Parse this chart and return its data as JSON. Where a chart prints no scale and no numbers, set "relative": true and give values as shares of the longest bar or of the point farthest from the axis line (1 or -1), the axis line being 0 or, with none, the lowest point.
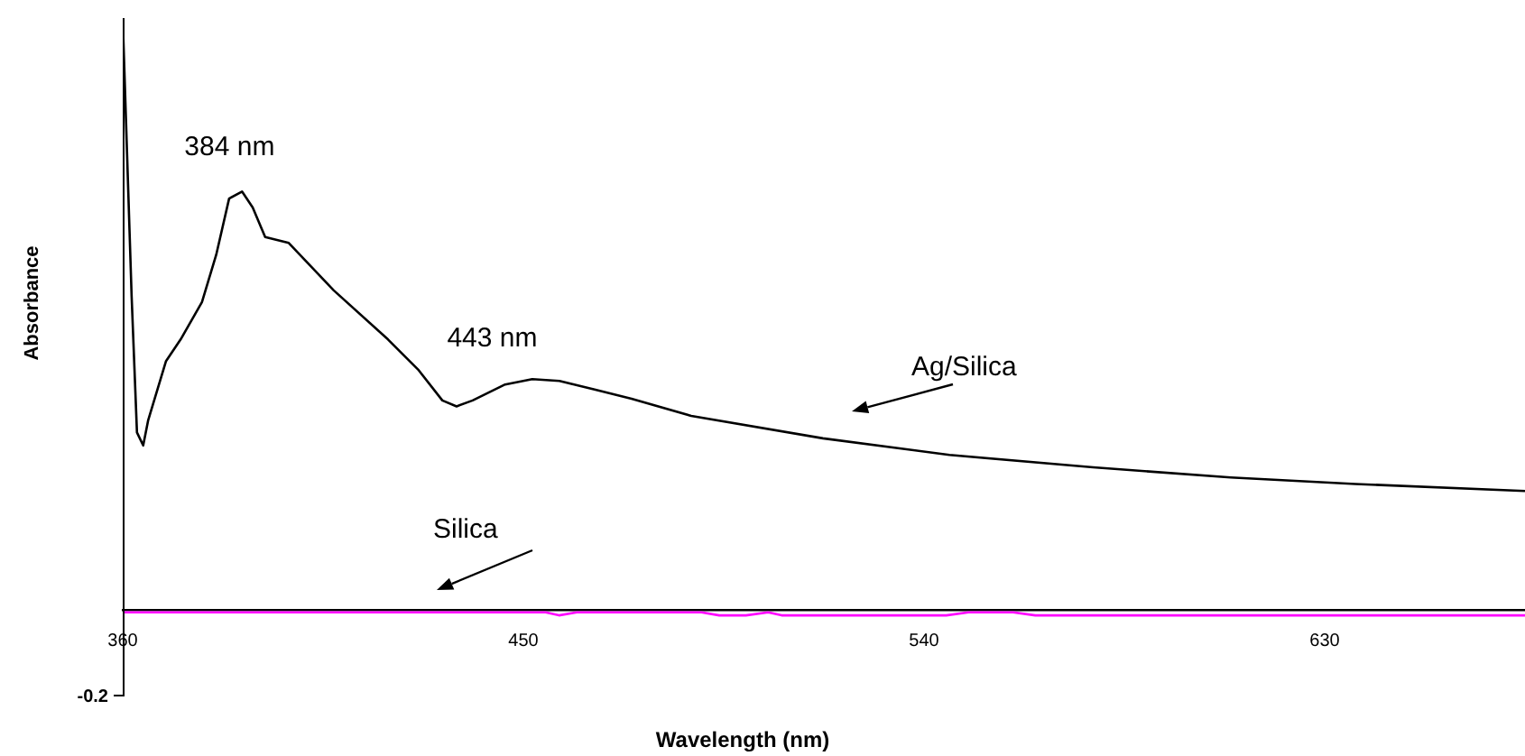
{
  "chart_data": {
    "type": "line",
    "relative": true,
    "xlabel": "Wavelength (nm)",
    "ylabel": "Absorbance",
    "xlim": [
      360,
      675
    ],
    "xticks": [
      360,
      450,
      540,
      630
    ],
    "grid": false,
    "legend": false,
    "marker": "none",
    "line_style": "solid",
    "annotations": [
      {
        "text": "384 nm",
        "x": 384,
        "y": 0.707
      },
      {
        "text": "443 nm",
        "x": 443,
        "y": 0.385
      },
      "-0.2"
    ],
    "series": [
      {
        "name": "Ag/Silica",
        "color": "#000000",
        "x": [
          360,
          362,
          363.2,
          364.6,
          365.7,
          369.7,
          373,
          377.8,
          381,
          383.9,
          386.8,
          389.2,
          392,
          397.3,
          407.4,
          419.6,
          426.5,
          431.8,
          435,
          438.6,
          445.9,
          452,
          458.1,
          466.2,
          474.3,
          487.7,
          517.3,
          545.7,
          578,
          608.9,
          636.9,
          675
        ],
        "values": [
          1,
          0.53,
          0.3,
          0.278,
          0.32,
          0.42,
          0.457,
          0.52,
          0.6,
          0.695,
          0.707,
          0.68,
          0.63,
          0.62,
          0.54,
          0.457,
          0.405,
          0.354,
          0.344,
          0.354,
          0.381,
          0.39,
          0.387,
          0.372,
          0.357,
          0.328,
          0.29,
          0.262,
          0.241,
          0.224,
          0.213,
          0.201
        ]
      },
      {
        "name": "Silica",
        "color": "#ff00ff",
        "x": [
          360,
          455,
          458,
          462,
          490,
          494,
          500,
          505,
          508,
          545,
          550,
          560,
          565,
          675
        ],
        "values": [
          -0.004,
          -0.004,
          -0.009,
          -0.004,
          -0.004,
          -0.009,
          -0.009,
          -0.004,
          -0.009,
          -0.009,
          -0.004,
          -0.004,
          -0.009,
          -0.009
        ]
      }
    ]
  }
}
